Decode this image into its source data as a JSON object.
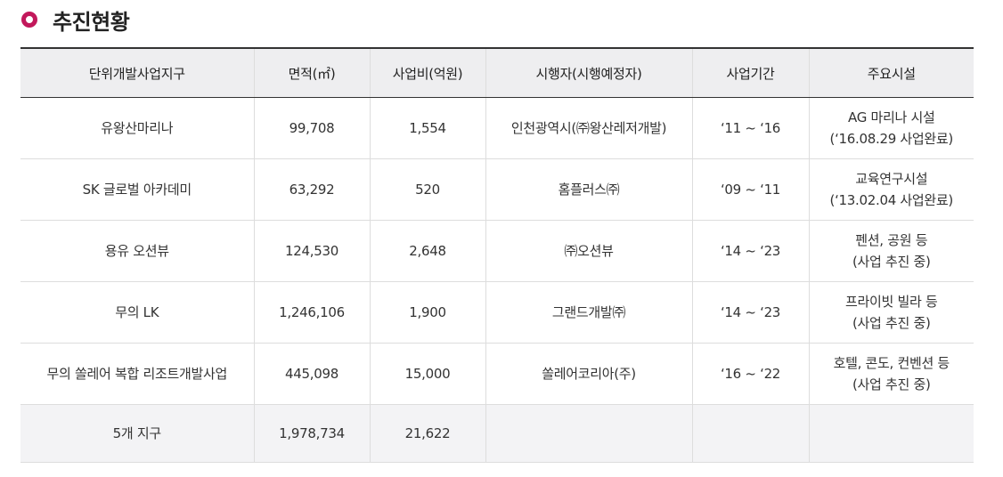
{
  "heading": {
    "icon": "circle-bullet-icon",
    "accent_color": "#c2185b",
    "title": "추진현황"
  },
  "table": {
    "headers": [
      "단위개발사업지구",
      "면적(㎡)",
      "사업비(억원)",
      "시행자(시행예정자)",
      "사업기간",
      "주요시설"
    ],
    "rows": [
      {
        "district": "유왕산마리나",
        "area": "99,708",
        "cost": "1,554",
        "operator": "인천광역시(㈜왕산레저개발)",
        "period": "‘11 ~ ‘16",
        "facility_line1": "AG 마리나 시설",
        "facility_line2": "(‘16.08.29 사업완료)"
      },
      {
        "district": "SK 글로벌 아카데미",
        "area": "63,292",
        "cost": "520",
        "operator": "홈플러스㈜",
        "period": "‘09 ~ ‘11",
        "facility_line1": "교육연구시설",
        "facility_line2": "(‘13.02.04 사업완료)"
      },
      {
        "district": "용유 오션뷰",
        "area": "124,530",
        "cost": "2,648",
        "operator": "㈜오션뷰",
        "period": "‘14 ~ ‘23",
        "facility_line1": "펜션, 공원 등",
        "facility_line2": "(사업 추진 중)"
      },
      {
        "district": "무의 LK",
        "area": "1,246,106",
        "cost": "1,900",
        "operator": "그랜드개발㈜",
        "period": "‘14 ~ ‘23",
        "facility_line1": "프라이빗 빌라 등",
        "facility_line2": "(사업 추진 중)"
      },
      {
        "district": "무의 쏠레어 복합 리조트개발사업",
        "area": "445,098",
        "cost": "15,000",
        "operator": "쏠레어코리아(주)",
        "period": "‘16 ~ ‘22",
        "facility_line1": "호텔, 콘도, 컨벤션 등",
        "facility_line2": "(사업 추진 중)"
      }
    ],
    "total": {
      "district": "5개 지구",
      "area": "1,978,734",
      "cost": "21,622"
    }
  }
}
